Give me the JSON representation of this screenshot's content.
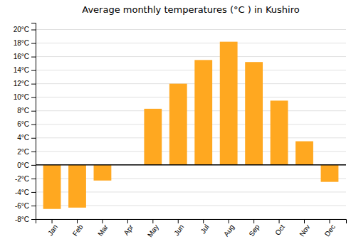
{
  "chart_data": {
    "type": "bar",
    "title": "Average monthly temperatures (°C ) in Kushiro",
    "categories": [
      "Jan",
      "Feb",
      "Mar",
      "Apr",
      "May",
      "Jun",
      "Jul",
      "Aug",
      "Sep",
      "Oct",
      "Nov",
      "Dec"
    ],
    "values": [
      -6.5,
      -6.3,
      -2.3,
      0.0,
      8.3,
      12.0,
      15.5,
      18.2,
      15.2,
      9.5,
      3.5,
      -2.5
    ],
    "color": "#FFA820",
    "ylim": [
      -8,
      21
    ],
    "yticks": [
      {
        "value": -8,
        "label": "-8°C"
      },
      {
        "value": -6,
        "label": "-6°C"
      },
      {
        "value": -4,
        "label": "-4°C"
      },
      {
        "value": -2,
        "label": "-2°C"
      },
      {
        "value": 0,
        "label": "0°C"
      },
      {
        "value": 2,
        "label": "2°C"
      },
      {
        "value": 4,
        "label": "4°C"
      },
      {
        "value": 6,
        "label": "6°C"
      },
      {
        "value": 8,
        "label": "8°C"
      },
      {
        "value": 10,
        "label": "10°C"
      },
      {
        "value": 12,
        "label": "12°C"
      },
      {
        "value": 14,
        "label": "14°C"
      },
      {
        "value": 16,
        "label": "16°C"
      },
      {
        "value": 18,
        "label": "18°C"
      },
      {
        "value": 20,
        "label": "20°C"
      }
    ],
    "grid": true
  }
}
